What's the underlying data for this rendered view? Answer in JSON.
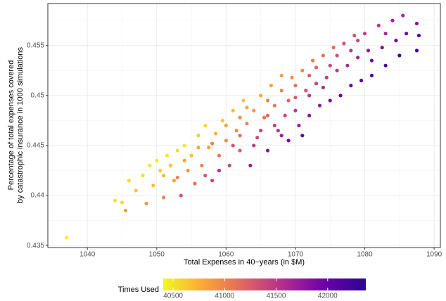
{
  "chart_data": {
    "type": "scatter",
    "xlabel": "Total Expenses in 40−years (in $M)",
    "ylabel": [
      "Percentage of total expenses covered",
      "by catastrophic insurance in 1000 simulations"
    ],
    "xlim": [
      1034.3,
      1090.9
    ],
    "ylim": [
      0.4348,
      0.4592
    ],
    "xticks": [
      1040,
      1050,
      1060,
      1070,
      1080,
      1090
    ],
    "yticks": [
      0.435,
      0.44,
      0.445,
      0.45,
      0.455
    ],
    "xminorticks": [
      1035,
      1045,
      1055,
      1065,
      1075,
      1085
    ],
    "yminorticks": [
      0.4375,
      0.4425,
      0.4475,
      0.4525,
      0.4575
    ],
    "grid": true,
    "legend": {
      "title": "Times Used",
      "position": "bottom",
      "clim": [
        40404,
        42370
      ],
      "ticks": [
        40500,
        41000,
        41500,
        42000
      ],
      "colormap": [
        "#f0f921",
        "#fca636",
        "#e16462",
        "#b12a90",
        "#6a00a8",
        "#2c0594"
      ]
    },
    "series": [
      {
        "name": "Times Used",
        "x": [
          1037.0,
          1044.0,
          1045.0,
          1045.5,
          1047.0,
          1048.0,
          1048.5,
          1049.0,
          1049.5,
          1050.0,
          1050.5,
          1051.0,
          1051.5,
          1052.0,
          1052.5,
          1053.0,
          1053.5,
          1054.0,
          1054.5,
          1055.0,
          1055.5,
          1056.0,
          1056.5,
          1057.0,
          1057.5,
          1058.0,
          1058.5,
          1059.0,
          1059.5,
          1060.0,
          1060.5,
          1061.0,
          1061.5,
          1062.0,
          1062.5,
          1063.0,
          1063.5,
          1064.0,
          1064.5,
          1065.0,
          1065.5,
          1066.0,
          1066.5,
          1067.0,
          1067.5,
          1068.0,
          1068.5,
          1069.0,
          1069.5,
          1070.0,
          1070.5,
          1071.0,
          1071.5,
          1072.0,
          1072.5,
          1073.0,
          1073.5,
          1074.0,
          1074.5,
          1075.0,
          1075.5,
          1076.0,
          1076.5,
          1077.0,
          1077.5,
          1078.0,
          1078.5,
          1079.0,
          1079.5,
          1080.0,
          1080.5,
          1081.0,
          1082.0,
          1082.5,
          1083.0,
          1084.0,
          1084.5,
          1085.0,
          1085.5,
          1086.0,
          1087.5,
          1087.5,
          1087.8,
          1058.0,
          1060.0,
          1062.0,
          1063.0,
          1064.0,
          1065.0,
          1066.0,
          1067.0,
          1068.0,
          1069.0,
          1070.0,
          1071.0,
          1072.0,
          1073.0,
          1074.0,
          1076.0,
          1078.0,
          1054.0,
          1056.0,
          1057.0,
          1059.0,
          1061.0,
          1062.0,
          1066.0,
          1068.0,
          1070.0,
          1072.0,
          1075.0,
          1079.0,
          1081.0,
          1083.0,
          1046.0,
          1051.0,
          1053.0
        ],
        "y": [
          0.4358,
          0.4395,
          0.4393,
          0.4385,
          0.4405,
          0.442,
          0.4392,
          0.443,
          0.441,
          0.4435,
          0.4425,
          0.4398,
          0.444,
          0.443,
          0.4415,
          0.4445,
          0.44,
          0.445,
          0.4425,
          0.444,
          0.4412,
          0.446,
          0.443,
          0.447,
          0.4448,
          0.4415,
          0.4462,
          0.444,
          0.4475,
          0.4455,
          0.443,
          0.4485,
          0.4465,
          0.4445,
          0.4495,
          0.4472,
          0.443,
          0.4485,
          0.4458,
          0.45,
          0.4478,
          0.4445,
          0.451,
          0.449,
          0.4465,
          0.4505,
          0.448,
          0.4455,
          0.4518,
          0.4498,
          0.447,
          0.4525,
          0.4505,
          0.448,
          0.4535,
          0.4512,
          0.449,
          0.454,
          0.4518,
          0.4495,
          0.4548,
          0.4525,
          0.45,
          0.4552,
          0.453,
          0.451,
          0.456,
          0.4538,
          0.4515,
          0.4562,
          0.4545,
          0.452,
          0.457,
          0.4548,
          0.453,
          0.4575,
          0.4555,
          0.454,
          0.458,
          0.4562,
          0.4572,
          0.4545,
          0.456,
          0.4452,
          0.447,
          0.446,
          0.4488,
          0.445,
          0.4465,
          0.448,
          0.447,
          0.446,
          0.4495,
          0.4485,
          0.446,
          0.45,
          0.4528,
          0.4508,
          0.454,
          0.4545,
          0.4435,
          0.4448,
          0.442,
          0.4425,
          0.445,
          0.4478,
          0.4495,
          0.452,
          0.451,
          0.452,
          0.453,
          0.4555,
          0.4535,
          0.4562,
          0.4415,
          0.442,
          0.4418
        ],
        "color_values": [
          40450,
          40500,
          40550,
          40850,
          40650,
          40520,
          40900,
          40480,
          40700,
          40450,
          40600,
          41000,
          40500,
          40650,
          40850,
          40550,
          41300,
          40500,
          40900,
          40700,
          41100,
          40600,
          41000,
          40550,
          40850,
          41400,
          40750,
          41100,
          40650,
          40950,
          41400,
          40700,
          40950,
          41250,
          40650,
          41000,
          41700,
          40900,
          41350,
          40800,
          41100,
          41800,
          40800,
          41100,
          41500,
          41000,
          41400,
          41900,
          40950,
          41250,
          41700,
          41000,
          41300,
          41800,
          41050,
          41400,
          41750,
          41100,
          41450,
          41900,
          41150,
          41500,
          42000,
          41300,
          41600,
          41950,
          41300,
          41650,
          42100,
          41450,
          41750,
          42150,
          41500,
          41850,
          42200,
          41700,
          41900,
          42250,
          41600,
          41950,
          41800,
          42300,
          42100,
          41000,
          40800,
          41150,
          40800,
          41500,
          41400,
          41200,
          41450,
          41700,
          41200,
          41500,
          42000,
          41500,
          41200,
          41600,
          41350,
          41500,
          40800,
          40800,
          41300,
          41550,
          41300,
          40950,
          41000,
          40850,
          41100,
          41250,
          41400,
          41400,
          41950,
          41650,
          40550,
          40700,
          41000
        ]
      }
    ]
  }
}
